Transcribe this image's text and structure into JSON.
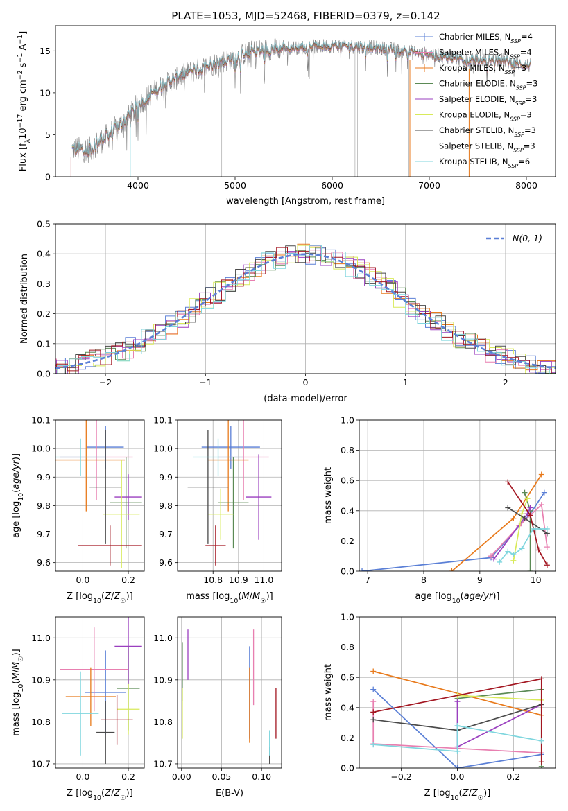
{
  "figure": {
    "title": "PLATE=1053, MJD=52468, FIBERID=0379, z=0.142"
  },
  "colors": {
    "Chabrier MILES": "#5a7fd6",
    "Salpeter MILES": "#e87fb0",
    "Kroupa MILES": "#e87a1c",
    "Chabrier ELODIE": "#5b8a55",
    "Salpeter ELODIE": "#9a3fbf",
    "Kroupa ELODIE": "#d8ea5a",
    "Chabrier STELIB": "#4a4a4a",
    "Salpeter STELIB": "#a31621",
    "Kroupa STELIB": "#7fd6de",
    "data": "#808080",
    "normal": "#5a7fd6"
  },
  "chart_data": [
    {
      "id": "spectrum",
      "type": "line",
      "xlabel": "wavelength [Angstrom, rest frame]",
      "ylabel": "Flux [f_λ 10^-17 erg cm^-2 s^-1 A^-1]",
      "xlim": [
        3150,
        8300
      ],
      "ylim": [
        0,
        18
      ],
      "xticks": [
        4000,
        5000,
        6000,
        7000,
        8000
      ],
      "yticks": [
        0,
        5,
        10,
        15
      ],
      "grid": false,
      "legend_position": "top-right",
      "legend": [
        {
          "name": "Chabrier MILES",
          "nssp": "4"
        },
        {
          "name": "Salpeter MILES",
          "nssp": "4"
        },
        {
          "name": "Kroupa MILES",
          "nssp": "3"
        },
        {
          "name": "Chabrier ELODIE",
          "nssp": "3"
        },
        {
          "name": "Salpeter ELODIE",
          "nssp": "3"
        },
        {
          "name": "Kroupa ELODIE",
          "nssp": "3"
        },
        {
          "name": "Chabrier STELIB",
          "nssp": "3"
        },
        {
          "name": "Salpeter STELIB",
          "nssp": "3"
        },
        {
          "name": "Kroupa STELIB",
          "nssp": "6"
        }
      ],
      "continuum": {
        "x": [
          3320,
          3500,
          3700,
          3900,
          4000,
          4200,
          4500,
          4800,
          5000,
          5200,
          5500,
          5800,
          6000,
          6300,
          6600,
          6900,
          7200,
          7400,
          7700,
          8050
        ],
        "y": [
          3.3,
          3.2,
          5.0,
          7.0,
          8.5,
          10.5,
          12.3,
          13.5,
          14.2,
          15.0,
          15.3,
          15.5,
          15.6,
          15.5,
          15.2,
          14.7,
          14.3,
          13.8,
          14.0,
          13.2
        ]
      }
    },
    {
      "id": "residuals",
      "type": "step",
      "xlabel": "(data-model)/error",
      "ylabel": "Normed distribution",
      "xlim": [
        -2.5,
        2.5
      ],
      "ylim": [
        0,
        0.5
      ],
      "xticks": [
        -2,
        -1,
        0,
        1,
        2
      ],
      "yticks": [
        0.0,
        0.1,
        0.2,
        0.3,
        0.4,
        0.5
      ],
      "grid": true,
      "legend_position": "top-right",
      "normal_label": "N(0, 1)"
    },
    {
      "id": "age-vs-Z",
      "type": "errorbar",
      "xlabel": "Z [log10(Z/Z☉)]",
      "ylabel": "age [log10(age/yr)]",
      "xlim": [
        -0.12,
        0.27
      ],
      "ylim": [
        9.57,
        10.1
      ],
      "xticks": [
        0.0,
        0.2
      ],
      "yticks": [
        9.6,
        9.7,
        9.8,
        9.9,
        10.0,
        10.1
      ],
      "grid": true,
      "points": [
        {
          "model": "Chabrier MILES",
          "x": 0.1,
          "xerr": 0.08,
          "y": 10.005,
          "yerr": 0.075
        },
        {
          "model": "Salpeter MILES",
          "x": 0.06,
          "xerr": 0.16,
          "y": 9.97,
          "yerr": 0.15
        },
        {
          "model": "Kroupa MILES",
          "x": 0.015,
          "xerr": 0.17,
          "y": 9.96,
          "yerr": 0.18
        },
        {
          "model": "Chabrier ELODIE",
          "x": 0.19,
          "xerr": 0.07,
          "y": 9.81,
          "yerr": 0.16
        },
        {
          "model": "Salpeter ELODIE",
          "x": 0.2,
          "xerr": 0.06,
          "y": 9.83,
          "yerr": 0.08
        },
        {
          "model": "Kroupa ELODIE",
          "x": 0.17,
          "xerr": 0.08,
          "y": 9.77,
          "yerr": 0.19
        },
        {
          "model": "Chabrier STELIB",
          "x": 0.1,
          "xerr": 0.07,
          "y": 9.865,
          "yerr": 0.2
        },
        {
          "model": "Salpeter STELIB",
          "x": 0.12,
          "xerr": 0.14,
          "y": 9.66,
          "yerr": 0.07
        },
        {
          "model": "Kroupa STELIB",
          "x": -0.01,
          "xerr": 0.11,
          "y": 9.97,
          "yerr": 0.065
        }
      ]
    },
    {
      "id": "age-vs-mass",
      "type": "errorbar",
      "xlabel": "mass [log10(M/M☉)]",
      "ylabel": "",
      "xlim": [
        10.66,
        11.07
      ],
      "ylim": [
        9.57,
        10.1
      ],
      "xticks": [
        10.8,
        10.9,
        11.0
      ],
      "yticks": [
        9.6,
        9.7,
        9.8,
        9.9,
        10.0,
        10.1
      ],
      "grid": true,
      "points": [
        {
          "model": "Chabrier MILES",
          "x": 10.87,
          "xerr": 0.115,
          "y": 10.005,
          "yerr": 0.075
        },
        {
          "model": "Salpeter MILES",
          "x": 10.92,
          "xerr": 0.1,
          "y": 9.97,
          "yerr": 0.15
        },
        {
          "model": "Kroupa MILES",
          "x": 10.86,
          "xerr": 0.08,
          "y": 9.96,
          "yerr": 0.18
        },
        {
          "model": "Chabrier ELODIE",
          "x": 10.88,
          "xerr": 0.06,
          "y": 9.81,
          "yerr": 0.16
        },
        {
          "model": "Salpeter ELODIE",
          "x": 10.98,
          "xerr": 0.05,
          "y": 9.83,
          "yerr": 0.15
        },
        {
          "model": "Kroupa ELODIE",
          "x": 10.83,
          "xerr": 0.05,
          "y": 9.77,
          "yerr": 0.09
        },
        {
          "model": "Chabrier STELIB",
          "x": 10.78,
          "xerr": 0.08,
          "y": 9.865,
          "yerr": 0.2
        },
        {
          "model": "Salpeter STELIB",
          "x": 10.81,
          "xerr": 0.04,
          "y": 9.66,
          "yerr": 0.07
        },
        {
          "model": "Kroupa STELIB",
          "x": 10.82,
          "xerr": 0.1,
          "y": 9.97,
          "yerr": 0.065
        }
      ]
    },
    {
      "id": "mass-vs-Z",
      "type": "errorbar",
      "xlabel": "Z [log10(Z/Z☉)]",
      "ylabel": "mass [log10(M/M☉)]",
      "xlim": [
        -0.12,
        0.27
      ],
      "ylim": [
        10.69,
        11.05
      ],
      "xticks": [
        0.0,
        0.2
      ],
      "yticks": [
        10.7,
        10.8,
        10.9,
        11.0
      ],
      "grid": true,
      "points": [
        {
          "model": "Chabrier MILES",
          "x": 0.1,
          "xerr": 0.09,
          "y": 10.87,
          "yerr": 0.1
        },
        {
          "model": "Salpeter MILES",
          "x": 0.05,
          "xerr": 0.15,
          "y": 10.925,
          "yerr": 0.1
        },
        {
          "model": "Kroupa MILES",
          "x": 0.035,
          "xerr": 0.11,
          "y": 10.86,
          "yerr": 0.07
        },
        {
          "model": "Chabrier ELODIE",
          "x": 0.2,
          "xerr": 0.05,
          "y": 10.88,
          "yerr": 0.1
        },
        {
          "model": "Salpeter ELODIE",
          "x": 0.2,
          "xerr": 0.06,
          "y": 10.98,
          "yerr": 0.09
        },
        {
          "model": "Kroupa ELODIE",
          "x": 0.2,
          "xerr": 0.05,
          "y": 10.83,
          "yerr": 0.06
        },
        {
          "model": "Chabrier STELIB",
          "x": 0.1,
          "xerr": 0.04,
          "y": 10.775,
          "yerr": 0.075
        },
        {
          "model": "Salpeter STELIB",
          "x": 0.15,
          "xerr": 0.07,
          "y": 10.805,
          "yerr": 0.06
        },
        {
          "model": "Kroupa STELIB",
          "x": -0.01,
          "xerr": 0.08,
          "y": 10.82,
          "yerr": 0.1
        }
      ]
    },
    {
      "id": "mass-vs-ebv",
      "type": "errorbar",
      "xlabel": "E(B-V)",
      "ylabel": "",
      "xlim": [
        -0.005,
        0.125
      ],
      "ylim": [
        10.69,
        11.05
      ],
      "xticks": [
        0.0,
        0.05,
        0.1
      ],
      "xtick_labels": [
        "0.00",
        "0.05",
        "0.10"
      ],
      "yticks": [
        10.7,
        10.8,
        10.9,
        11.0
      ],
      "grid": true,
      "points": [
        {
          "model": "Chabrier MILES",
          "x": 0.085,
          "xerr": 0,
          "y": 10.87,
          "yerr": 0.11
        },
        {
          "model": "Salpeter MILES",
          "x": 0.09,
          "xerr": 0,
          "y": 10.93,
          "yerr": 0.09
        },
        {
          "model": "Kroupa MILES",
          "x": 0.085,
          "xerr": 0,
          "y": 10.84,
          "yerr": 0.09
        },
        {
          "model": "Chabrier ELODIE",
          "x": 0.001,
          "xerr": 0,
          "y": 10.92,
          "yerr": 0.07
        },
        {
          "model": "Salpeter ELODIE",
          "x": 0.008,
          "xerr": 0,
          "y": 10.96,
          "yerr": 0.06
        },
        {
          "model": "Kroupa ELODIE",
          "x": 0.001,
          "xerr": 0,
          "y": 10.82,
          "yerr": 0.06
        },
        {
          "model": "Chabrier STELIB",
          "x": 0.11,
          "xerr": 0,
          "y": 10.72,
          "yerr": 0.02
        },
        {
          "model": "Salpeter STELIB",
          "x": 0.118,
          "xerr": 0,
          "y": 10.82,
          "yerr": 0.06
        },
        {
          "model": "Kroupa STELIB",
          "x": 0.11,
          "xerr": 0,
          "y": 10.75,
          "yerr": 0.03
        }
      ]
    },
    {
      "id": "weight-vs-age",
      "type": "line",
      "xlabel": "age [log10(age/yr)]",
      "ylabel": "mass weight",
      "xlim": [
        6.85,
        10.35
      ],
      "ylim": [
        0,
        1.0
      ],
      "xticks": [
        7,
        8,
        9,
        10
      ],
      "yticks": [
        0.0,
        0.2,
        0.4,
        0.6,
        0.8,
        1.0
      ],
      "grid": true,
      "series": [
        {
          "model": "Chabrier MILES",
          "x": [
            6.9,
            9.2,
            9.9,
            10.15
          ],
          "y": [
            0.0,
            0.09,
            0.38,
            0.52
          ]
        },
        {
          "model": "Salpeter MILES",
          "x": [
            9.2,
            9.7,
            10.1,
            10.2
          ],
          "y": [
            0.1,
            0.3,
            0.44,
            0.16
          ]
        },
        {
          "model": "Kroupa MILES",
          "x": [
            8.5,
            9.6,
            10.1
          ],
          "y": [
            0.0,
            0.35,
            0.64
          ]
        },
        {
          "model": "Chabrier ELODIE",
          "x": [
            9.8,
            9.9,
            9.9
          ],
          "y": [
            0.52,
            0.4,
            0.0
          ]
        },
        {
          "model": "Salpeter ELODIE",
          "x": [
            9.25,
            9.85,
            9.9
          ],
          "y": [
            0.08,
            0.38,
            0.42
          ]
        },
        {
          "model": "Kroupa ELODIE",
          "x": [
            9.6,
            9.75,
            9.85
          ],
          "y": [
            0.07,
            0.38,
            0.48
          ]
        },
        {
          "model": "Chabrier STELIB",
          "x": [
            9.5,
            9.8,
            10.2
          ],
          "y": [
            0.42,
            0.35,
            0.25
          ]
        },
        {
          "model": "Salpeter STELIB",
          "x": [
            9.5,
            9.9,
            10.05,
            10.2
          ],
          "y": [
            0.59,
            0.37,
            0.14,
            0.04
          ]
        },
        {
          "model": "Kroupa STELIB",
          "x": [
            9.35,
            9.5,
            9.6,
            9.75,
            9.95,
            10.2
          ],
          "y": [
            0.06,
            0.13,
            0.11,
            0.15,
            0.28,
            0.28
          ]
        }
      ]
    },
    {
      "id": "weight-vs-Z",
      "type": "line",
      "xlabel": "Z [log10(Z/Z☉)]",
      "ylabel": "mass weight",
      "xlim": [
        -0.35,
        0.35
      ],
      "ylim": [
        0,
        1.0
      ],
      "xticks": [
        -0.2,
        0.0,
        0.2
      ],
      "yticks": [
        0.0,
        0.2,
        0.4,
        0.6,
        0.8,
        1.0
      ],
      "grid": true,
      "series": [
        {
          "model": "Chabrier MILES",
          "x": [
            -0.3,
            0.0,
            0.3
          ],
          "y": [
            0.52,
            0.0,
            0.09
          ]
        },
        {
          "model": "Salpeter MILES",
          "x": [
            -0.3,
            -0.3,
            0.3
          ],
          "y": [
            0.44,
            0.16,
            0.1
          ]
        },
        {
          "model": "Kroupa MILES",
          "x": [
            -0.3,
            0.3
          ],
          "y": [
            0.64,
            0.35
          ]
        },
        {
          "model": "Chabrier ELODIE",
          "x": [
            0.0,
            0.3,
            0.3
          ],
          "y": [
            0.46,
            0.52,
            0.01
          ]
        },
        {
          "model": "Salpeter ELODIE",
          "x": [
            0.0,
            0.0,
            0.3
          ],
          "y": [
            0.44,
            0.14,
            0.42
          ]
        },
        {
          "model": "Kroupa ELODIE",
          "x": [
            0.0,
            0.3
          ],
          "y": [
            0.48,
            0.45
          ]
        },
        {
          "model": "Chabrier STELIB",
          "x": [
            -0.3,
            0.0,
            0.3
          ],
          "y": [
            0.32,
            0.25,
            0.42
          ]
        },
        {
          "model": "Salpeter STELIB",
          "x": [
            -0.3,
            0.3,
            0.3
          ],
          "y": [
            0.37,
            0.59,
            0.04
          ]
        },
        {
          "model": "Kroupa STELIB",
          "x": [
            -0.3,
            0.0,
            0.0,
            0.3
          ],
          "y": [
            0.155,
            0.11,
            0.28,
            0.18
          ]
        }
      ]
    }
  ]
}
